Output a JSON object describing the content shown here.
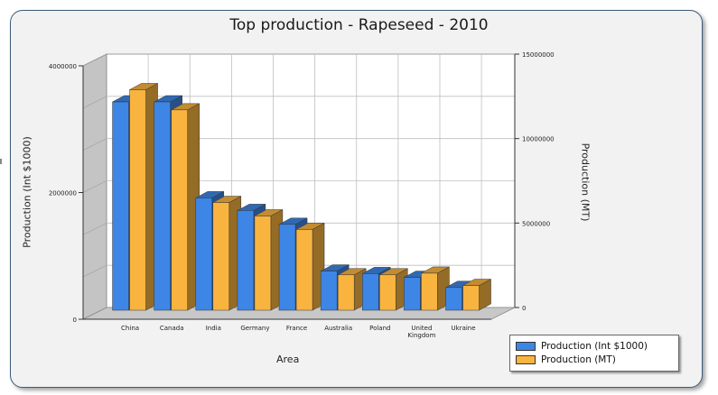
{
  "chart_data": {
    "type": "bar",
    "title": "Top production - Rapeseed - 2010",
    "xlabel": "Area",
    "ylabel_left": "Production (Int $1000)",
    "ylabel_right": "Production (MT)",
    "categories": [
      "China",
      "Canada",
      "India",
      "Germany",
      "France",
      "Australia",
      "Poland",
      "United Kingdom",
      "Ukraine"
    ],
    "category_labels": [
      [
        "China"
      ],
      [
        "Canada"
      ],
      [
        "India"
      ],
      [
        "Germany"
      ],
      [
        "France"
      ],
      [
        "Australia"
      ],
      [
        "Poland"
      ],
      [
        "United",
        "Kingdom"
      ],
      [
        "Ukraine"
      ]
    ],
    "ylim_left": [
      0,
      4000000
    ],
    "ylim_right": [
      0,
      15000000
    ],
    "yticks_left": [
      "0",
      "2000000",
      "4000000"
    ],
    "yticks_right": [
      "0",
      "5000000",
      "10000000",
      "15000000"
    ],
    "series": [
      {
        "name": "Production (Int $1000)",
        "axis": "left",
        "color": "#3d86e6",
        "values": [
          3300000,
          3300000,
          1780000,
          1580000,
          1360000,
          620000,
          580000,
          520000,
          360000
        ]
      },
      {
        "name": "Production (MT)",
        "axis": "right",
        "color": "#f9b440",
        "values": [
          13100000,
          11900000,
          6400000,
          5600000,
          4800000,
          2100000,
          2100000,
          2200000,
          1470000
        ]
      }
    ],
    "grid": true,
    "legend_position": "bottom-right"
  }
}
